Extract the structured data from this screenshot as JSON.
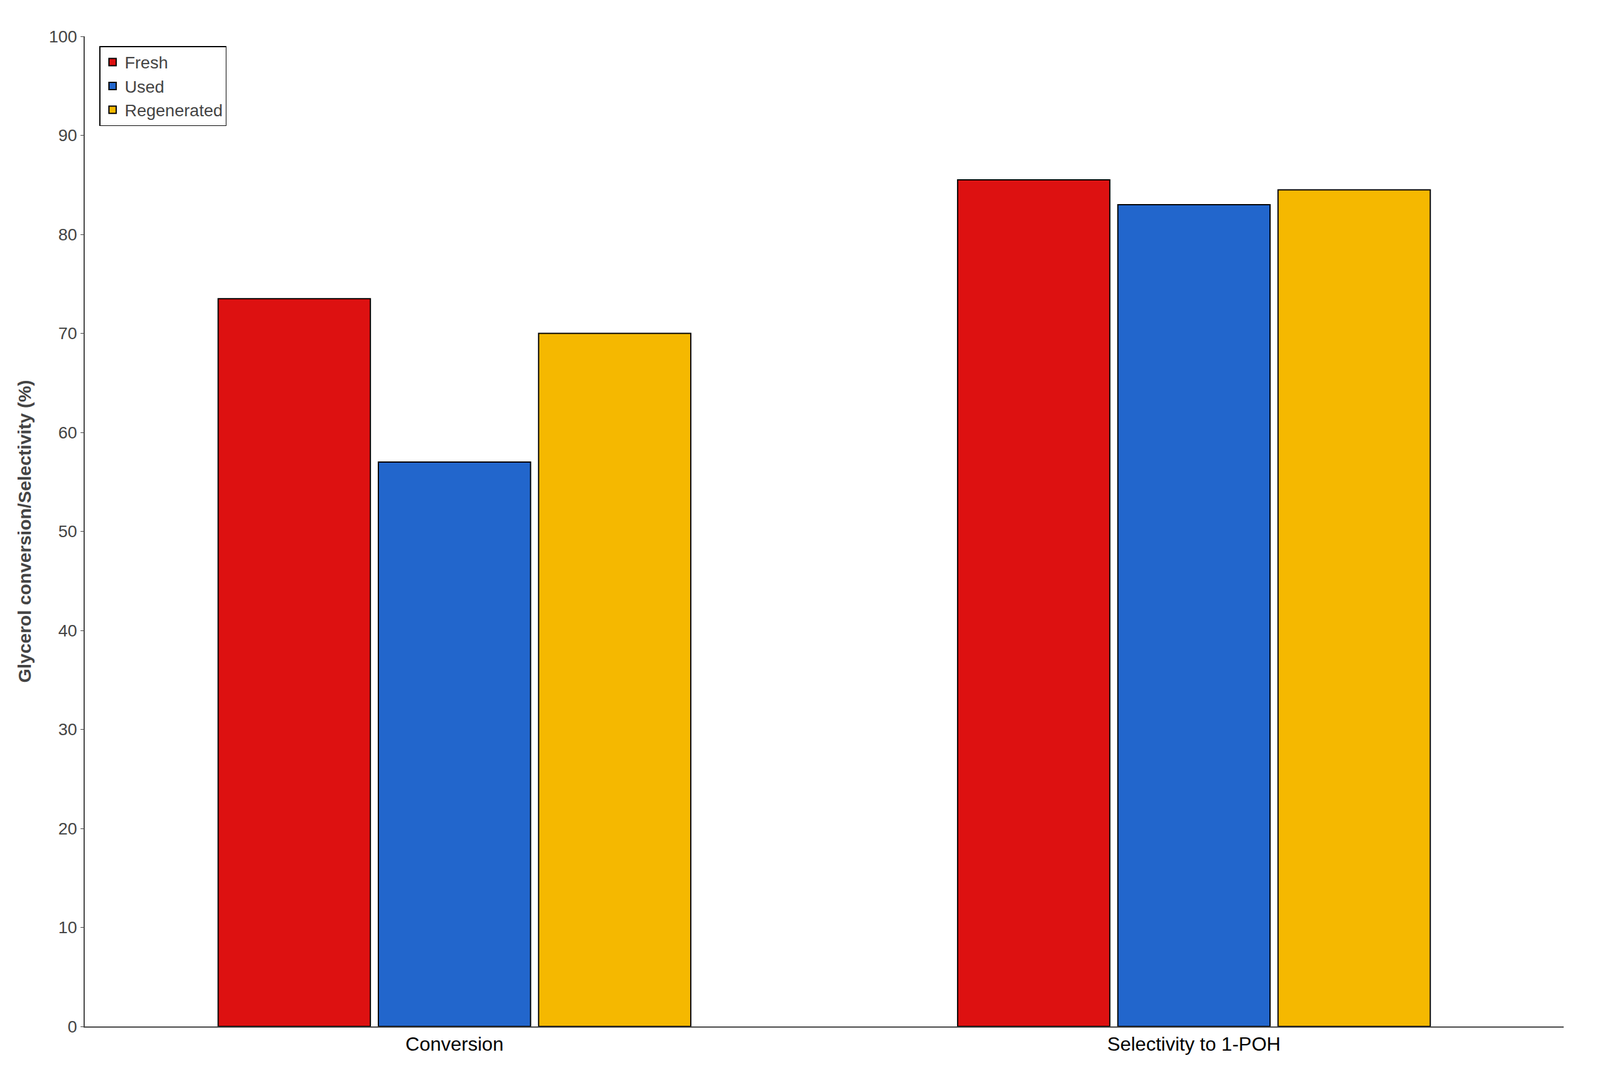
{
  "chart_data": {
    "type": "bar",
    "categories": [
      "Conversion",
      "Selectivity to 1-POH"
    ],
    "series": [
      {
        "name": "Fresh",
        "color": "#DD1111",
        "values": [
          73.5,
          85.5
        ]
      },
      {
        "name": "Used",
        "color": "#2266CC",
        "values": [
          57.0,
          83.0
        ]
      },
      {
        "name": "Regenerated",
        "color": "#F5B800",
        "values": [
          70.0,
          84.5
        ]
      }
    ],
    "ylabel": "Glycerol conversion/Selectivity (%)",
    "ylim": [
      0,
      100
    ],
    "yticks": [
      0,
      10,
      20,
      30,
      40,
      50,
      60,
      70,
      80,
      90,
      100
    ],
    "grid": false,
    "legend": "upper left"
  }
}
